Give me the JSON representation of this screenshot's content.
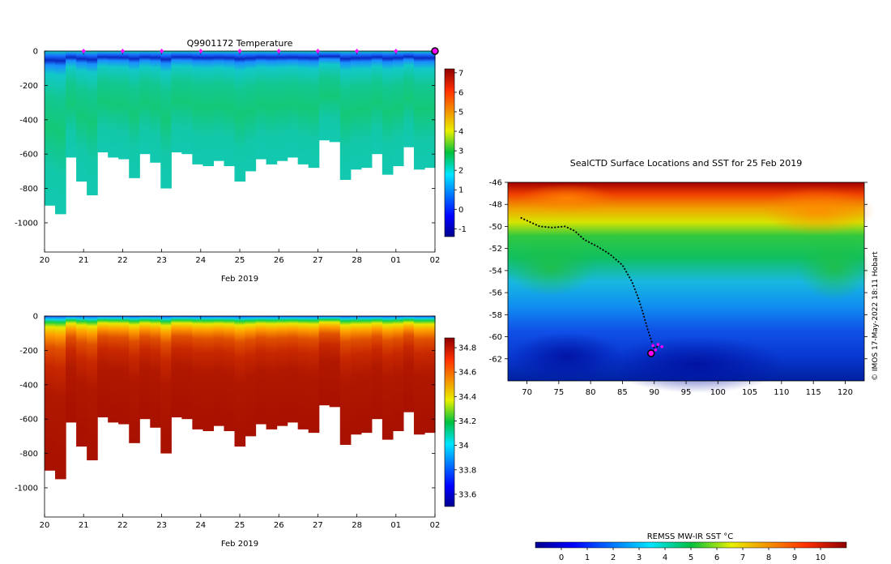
{
  "chart_data": [
    {
      "type": "heatmap",
      "title": "Q9901172  Temperature",
      "xlabel": "Feb 2019",
      "ylabel": "",
      "x_tick_labels": [
        "20",
        "21",
        "22",
        "23",
        "24",
        "25",
        "26",
        "27",
        "28",
        "01",
        "02"
      ],
      "y_ticks": [
        0,
        -200,
        -400,
        -600,
        -800,
        -1000
      ],
      "ylim": [
        -1170,
        0
      ],
      "colorbar": {
        "ticks": [
          7,
          6,
          5,
          4,
          3,
          2,
          1,
          0,
          -1
        ],
        "range": [
          -1.4,
          7.2
        ]
      },
      "surface_markers_x": [
        "21",
        "22",
        "23",
        "24",
        "25",
        "26",
        "27",
        "28",
        "01"
      ],
      "max_depth_profile": [
        -900,
        -950,
        -620,
        -760,
        -840,
        -590,
        -620,
        -630,
        -740,
        -600,
        -650,
        -800,
        -590,
        -600,
        -660,
        -670,
        -640,
        -670,
        -760,
        -700,
        -630,
        -660,
        -640,
        -620,
        -660,
        -680,
        -520,
        -530,
        -750,
        -690,
        -680,
        -600,
        -720,
        -670,
        -560,
        -690,
        -680
      ]
    },
    {
      "type": "heatmap",
      "title": "",
      "xlabel": "Feb 2019",
      "ylabel": "",
      "x_tick_labels": [
        "20",
        "21",
        "22",
        "23",
        "24",
        "25",
        "26",
        "27",
        "28",
        "01",
        "02"
      ],
      "y_ticks": [
        0,
        -200,
        -400,
        -600,
        -800,
        -1000
      ],
      "ylim": [
        -1170,
        0
      ],
      "colorbar": {
        "ticks": [
          34.8,
          34.6,
          34.4,
          34.2,
          34,
          33.8,
          33.6
        ],
        "range": [
          33.5,
          34.88
        ]
      },
      "max_depth_profile": [
        -900,
        -950,
        -620,
        -760,
        -840,
        -590,
        -620,
        -630,
        -740,
        -600,
        -650,
        -800,
        -590,
        -600,
        -660,
        -670,
        -640,
        -670,
        -760,
        -700,
        -630,
        -660,
        -640,
        -620,
        -660,
        -680,
        -520,
        -530,
        -750,
        -690,
        -680,
        -600,
        -720,
        -670,
        -560,
        -690,
        -680
      ]
    },
    {
      "type": "scatter",
      "title": "SealCTD Surface Locations and SST for 25 Feb 2019",
      "xlabel": "",
      "ylabel": "",
      "xlim": [
        67,
        123
      ],
      "ylim": [
        -64,
        -46
      ],
      "x_ticks": [
        70,
        75,
        80,
        85,
        90,
        95,
        100,
        105,
        110,
        115,
        120
      ],
      "y_ticks": [
        -46,
        -48,
        -50,
        -52,
        -54,
        -56,
        -58,
        -60,
        -62
      ],
      "track": [
        [
          69.0,
          -49.2
        ],
        [
          70.5,
          -49.6
        ],
        [
          72.0,
          -50.0
        ],
        [
          74.0,
          -50.1
        ],
        [
          76.0,
          -50.0
        ],
        [
          77.5,
          -50.4
        ],
        [
          79.0,
          -51.2
        ],
        [
          81.0,
          -51.8
        ],
        [
          83.0,
          -52.5
        ],
        [
          85.0,
          -53.5
        ],
        [
          86.5,
          -55.0
        ],
        [
          87.5,
          -56.5
        ],
        [
          88.3,
          -58.0
        ],
        [
          89.0,
          -59.4
        ],
        [
          89.8,
          -60.8
        ],
        [
          90.2,
          -61.2
        ],
        [
          90.6,
          -60.7
        ],
        [
          91.2,
          -60.9
        ]
      ],
      "current_position": [
        89.5,
        -61.5
      ],
      "colorbar": {
        "label": "REMSS MW-IR SST °C",
        "ticks": [
          0,
          1,
          2,
          3,
          4,
          5,
          6,
          7,
          8,
          9,
          10
        ],
        "range": [
          -1,
          11
        ]
      },
      "credit": "© IMOS 17-May-2022 18:11 Hobart"
    }
  ],
  "colors": {
    "marker": "#ff00ff",
    "track": "#000000",
    "background": "#ffffff"
  }
}
